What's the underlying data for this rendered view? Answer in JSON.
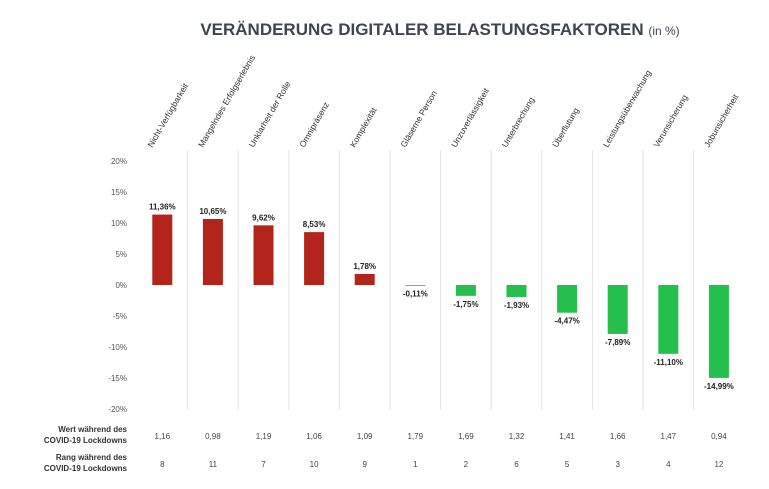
{
  "chart_data": {
    "type": "bar",
    "title": "VERÄNDERUNG DIGITALER BELASTUNGSFAKTOREN",
    "title_unit": "(in %)",
    "categories": [
      "Nicht-Verfügbarkeit",
      "Mangelndes Erfolgserlebnis",
      "Unklarheit der Rolle",
      "Omnipräsenz",
      "Komplexität",
      "Gläserne Person",
      "Unzuverlässigkeit",
      "Unterbrechung",
      "Überflutung",
      "Leistungsüberwachung",
      "Verunsicherung",
      "Jobunsicherheit"
    ],
    "values": [
      11.36,
      10.65,
      9.62,
      8.53,
      1.78,
      -0.11,
      -1.75,
      -1.93,
      -4.47,
      -7.89,
      -11.1,
      -14.99
    ],
    "data_labels": [
      "11,36%",
      "10,65%",
      "9,62%",
      "8,53%",
      "1,78%",
      "-0,11%",
      "-1,75%",
      "-1,93%",
      "-4,47%",
      "-7,89%",
      "-11,10%",
      "-14,99%"
    ],
    "ylim": [
      -20,
      20
    ],
    "yticks": [
      "20%",
      "15%",
      "10%",
      "5%",
      "0%",
      "-5%",
      "-10%",
      "-15%",
      "-20%"
    ],
    "grid": "vertical separators",
    "colors": {
      "positive": "#b3251a",
      "negative": "#25c04b"
    },
    "table_rows": [
      {
        "label": [
          "Wert während des",
          "COVID-19 Lockdowns"
        ],
        "values": [
          "1,16",
          "0,98",
          "1,19",
          "1,06",
          "1,09",
          "1,79",
          "1,69",
          "1,32",
          "1,41",
          "1,66",
          "1,47",
          "0,94"
        ]
      },
      {
        "label": [
          "Rang während des",
          "COVID-19 Lockdowns"
        ],
        "values": [
          "8",
          "11",
          "7",
          "10",
          "9",
          "1",
          "2",
          "6",
          "5",
          "3",
          "4",
          "12"
        ]
      }
    ]
  }
}
